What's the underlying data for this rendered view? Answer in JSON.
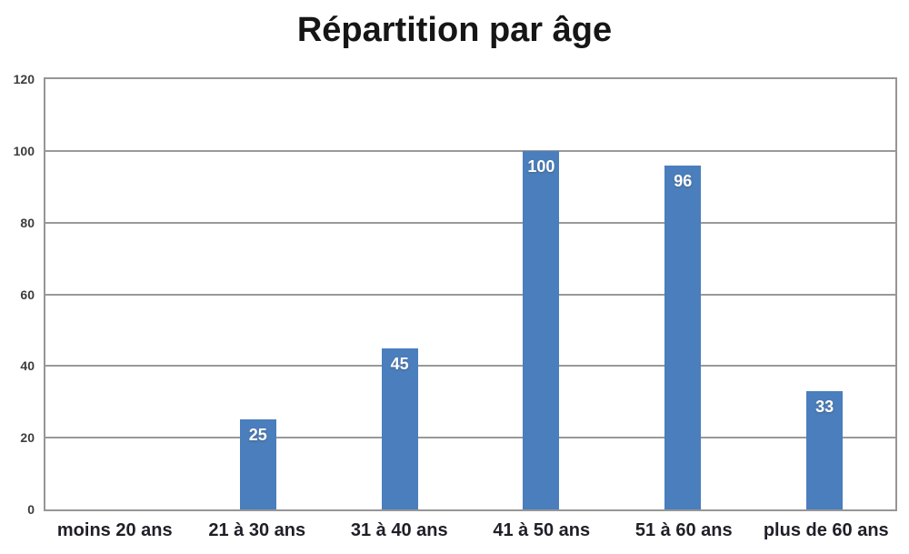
{
  "chart_data": {
    "type": "bar",
    "title": "Répartition par âge",
    "categories": [
      "moins 20 ans",
      "21 à 30 ans",
      "31 à 40 ans",
      "41 à 50 ans",
      "51 à 60 ans",
      "plus de 60 ans"
    ],
    "values": [
      0,
      25,
      45,
      100,
      96,
      33
    ],
    "data_labels": [
      "",
      "25",
      "45",
      "100",
      "96",
      "33"
    ],
    "xlabel": "",
    "ylabel": "",
    "ylim": [
      0,
      120
    ],
    "yticks": [
      0,
      20,
      40,
      60,
      80,
      100,
      120
    ],
    "grid": true,
    "legend_position": "none",
    "bar_color": "#4a7ebc",
    "gridline_color": "#999999",
    "border_color": "#969696",
    "value_label_color": "#ffffff",
    "title_color": "#161616",
    "axis_label_color": "#1f1f28"
  }
}
